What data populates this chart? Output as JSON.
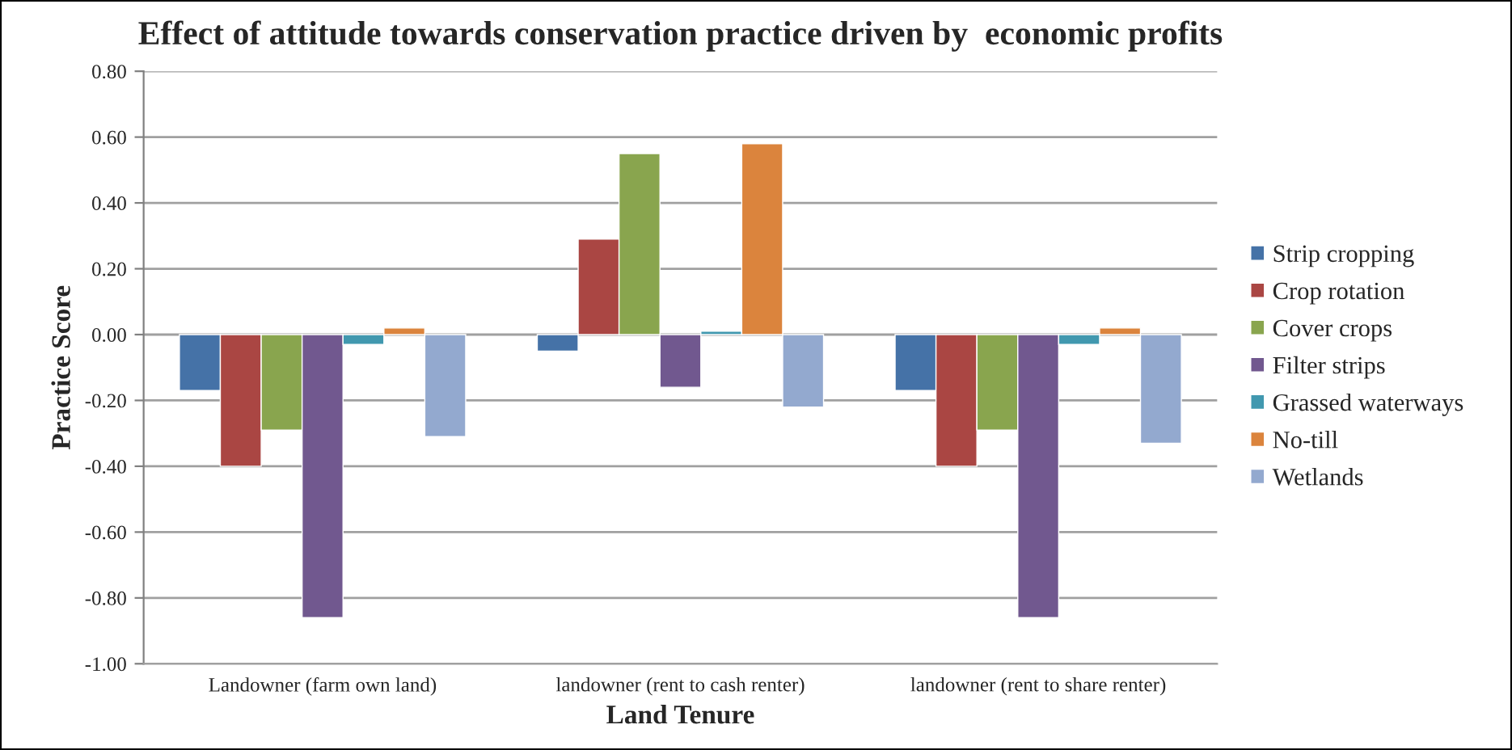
{
  "chart_data": {
    "type": "bar",
    "title": "Effect of attitude towards conservation practice driven by  economic profits",
    "xlabel": "Land Tenure",
    "ylabel": "Practice Score",
    "categories": [
      "Landowner (farm own land)",
      "landowner (rent to cash renter)",
      "landowner (rent to share renter)"
    ],
    "series": [
      {
        "name": "Strip cropping",
        "color": "#4572a7",
        "values": [
          -0.17,
          -0.05,
          -0.17
        ]
      },
      {
        "name": "Crop rotation",
        "color": "#aa4643",
        "values": [
          -0.4,
          0.29,
          -0.4
        ]
      },
      {
        "name": "Cover crops",
        "color": "#89a54e",
        "values": [
          -0.29,
          0.55,
          -0.29
        ]
      },
      {
        "name": "Filter strips",
        "color": "#71588f",
        "values": [
          -0.86,
          -0.16,
          -0.86
        ]
      },
      {
        "name": "Grassed waterways",
        "color": "#4198af",
        "values": [
          -0.03,
          0.01,
          -0.03
        ]
      },
      {
        "name": "No-till",
        "color": "#db843d",
        "values": [
          0.02,
          0.58,
          0.02
        ]
      },
      {
        "name": "Wetlands",
        "color": "#93a9cf",
        "values": [
          -0.31,
          -0.22,
          -0.33
        ]
      }
    ],
    "ylim": [
      -1.0,
      0.8
    ],
    "yticks": [
      {
        "value": -1.0,
        "label": "-1.00"
      },
      {
        "value": -0.8,
        "label": "-0.80"
      },
      {
        "value": -0.6,
        "label": "-0.60"
      },
      {
        "value": -0.4,
        "label": "-0.40"
      },
      {
        "value": -0.2,
        "label": "-0.20"
      },
      {
        "value": 0.0,
        "label": "0.00"
      },
      {
        "value": 0.2,
        "label": "0.20"
      },
      {
        "value": 0.4,
        "label": "0.40"
      },
      {
        "value": 0.6,
        "label": "0.60"
      },
      {
        "value": 0.8,
        "label": "0.80"
      }
    ],
    "grid": "y",
    "legend": "right"
  }
}
